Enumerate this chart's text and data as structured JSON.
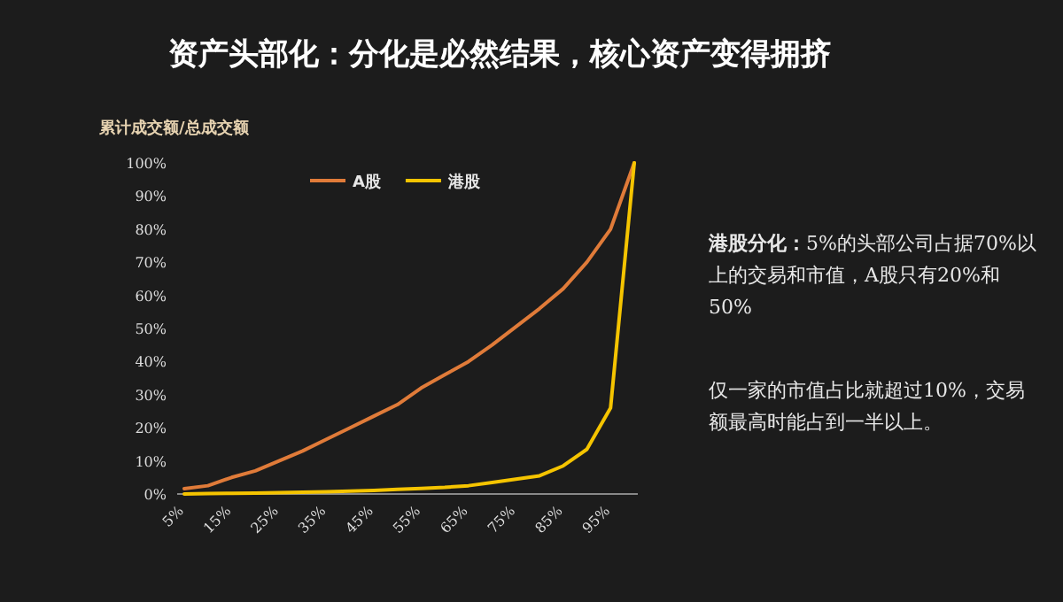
{
  "chart_data": {
    "type": "line",
    "title": "资产头部化：分化是必然结果，核心资产变得拥挤",
    "ylabel": "累计成交额/总成交额",
    "categories": [
      "5%",
      null,
      "15%",
      null,
      "25%",
      null,
      "35%",
      null,
      "45%",
      null,
      "55%",
      null,
      "65%",
      null,
      "75%",
      null,
      "85%",
      null,
      "95%",
      null
    ],
    "series": [
      {
        "name": "A股",
        "color": "#e07b39",
        "values": [
          1.6,
          2.5,
          5,
          7,
          10,
          13,
          16.5,
          20,
          23.5,
          27,
          32,
          36,
          40,
          45,
          50.5,
          56,
          62,
          70,
          80,
          100
        ]
      },
      {
        "name": "港股",
        "color": "#f5c400",
        "values": [
          0,
          0.1,
          0.2,
          0.3,
          0.4,
          0.5,
          0.7,
          0.9,
          1.1,
          1.4,
          1.7,
          2,
          2.5,
          3.5,
          4.5,
          5.5,
          8.5,
          13.5,
          26,
          100
        ]
      }
    ],
    "ylim": [
      0,
      100
    ],
    "yticks": [
      {
        "value": 0,
        "label": "0%"
      },
      {
        "value": 10,
        "label": "10%"
      },
      {
        "value": 20,
        "label": "20%"
      },
      {
        "value": 30,
        "label": "30%"
      },
      {
        "value": 40,
        "label": "40%"
      },
      {
        "value": 50,
        "label": "50%"
      },
      {
        "value": 60,
        "label": "60%"
      },
      {
        "value": 70,
        "label": "70%"
      },
      {
        "value": 80,
        "label": "80%"
      },
      {
        "value": 90,
        "label": "90%"
      },
      {
        "value": 100,
        "label": "100%"
      }
    ],
    "grid": false,
    "legend": "top",
    "marker": "none",
    "line_style": "solid",
    "annotations": [
      "**港股分化：**5%的头部公司占据70%以上的交易和市值，A股只有20%和50%",
      "仅一家的市值占比就超过10%，交易额最高时能占到一半以上。"
    ]
  }
}
